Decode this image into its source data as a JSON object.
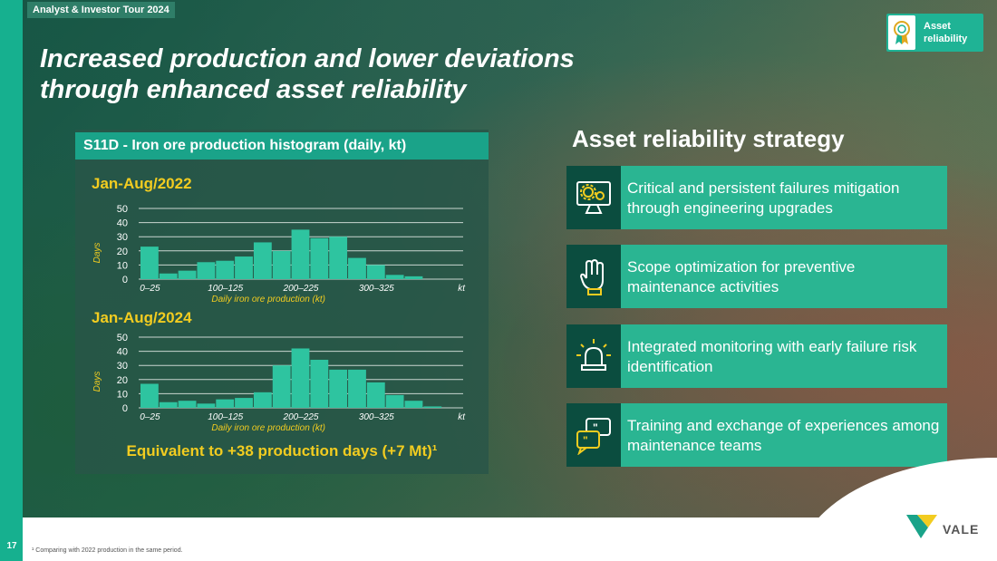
{
  "header": {
    "tag": "Analyst & Investor Tour 2024",
    "title_line1": "Increased production and lower deviations",
    "title_line2": "through enhanced asset reliability"
  },
  "badge": {
    "line1": "Asset",
    "line2": "reliability",
    "icon": "award-ribbon-icon"
  },
  "panel": {
    "title": "S11D - Iron ore production histogram (daily, kt)",
    "equivalent_text": "Equivalent to +38 production days (+7 Mt)¹"
  },
  "chart_data": [
    {
      "type": "bar",
      "title": "Jan-Aug/2022",
      "xlabel": "Daily iron ore production (kt)",
      "ylabel": "Days",
      "x_unit": "kt",
      "tick_labels": [
        "0–25",
        "100–125",
        "200–225",
        "300–325"
      ],
      "ylim": [
        0,
        50
      ],
      "yticks": [
        0,
        10,
        20,
        30,
        40,
        50
      ],
      "grid": true,
      "values": [
        23,
        4,
        6,
        12,
        13,
        16,
        26,
        20,
        35,
        29,
        30,
        15,
        10,
        3,
        2,
        0,
        0
      ]
    },
    {
      "type": "bar",
      "title": "Jan-Aug/2024",
      "xlabel": "Daily iron ore production (kt)",
      "ylabel": "Days",
      "x_unit": "kt",
      "tick_labels": [
        "0–25",
        "100–125",
        "200–225",
        "300–325"
      ],
      "ylim": [
        0,
        50
      ],
      "yticks": [
        0,
        10,
        20,
        30,
        40,
        50
      ],
      "grid": true,
      "values": [
        17,
        4,
        5,
        3,
        6,
        7,
        11,
        30,
        42,
        34,
        27,
        27,
        18,
        9,
        5,
        1,
        0
      ]
    }
  ],
  "strategy": {
    "title": "Asset reliability strategy",
    "items": [
      {
        "label": "Critical and persistent failures mitigation through engineering upgrades",
        "icon": "gears-monitor-icon"
      },
      {
        "label": "Scope optimization for preventive maintenance activities",
        "icon": "glove-hand-icon"
      },
      {
        "label": "Integrated monitoring with early failure risk identification",
        "icon": "alarm-light-icon"
      },
      {
        "label": "Training and exchange of experiences among maintenance teams",
        "icon": "chat-bubbles-icon"
      }
    ]
  },
  "footer": {
    "page_number": "17",
    "footnote": "¹ Comparing with 2022 production in the same period.",
    "logo_text": "VALE"
  },
  "colors": {
    "accent": "#1fb395",
    "bar": "#2ec4a0",
    "highlight_text": "#f2cc20",
    "dark_icon_bg": "#0b4d3f"
  }
}
